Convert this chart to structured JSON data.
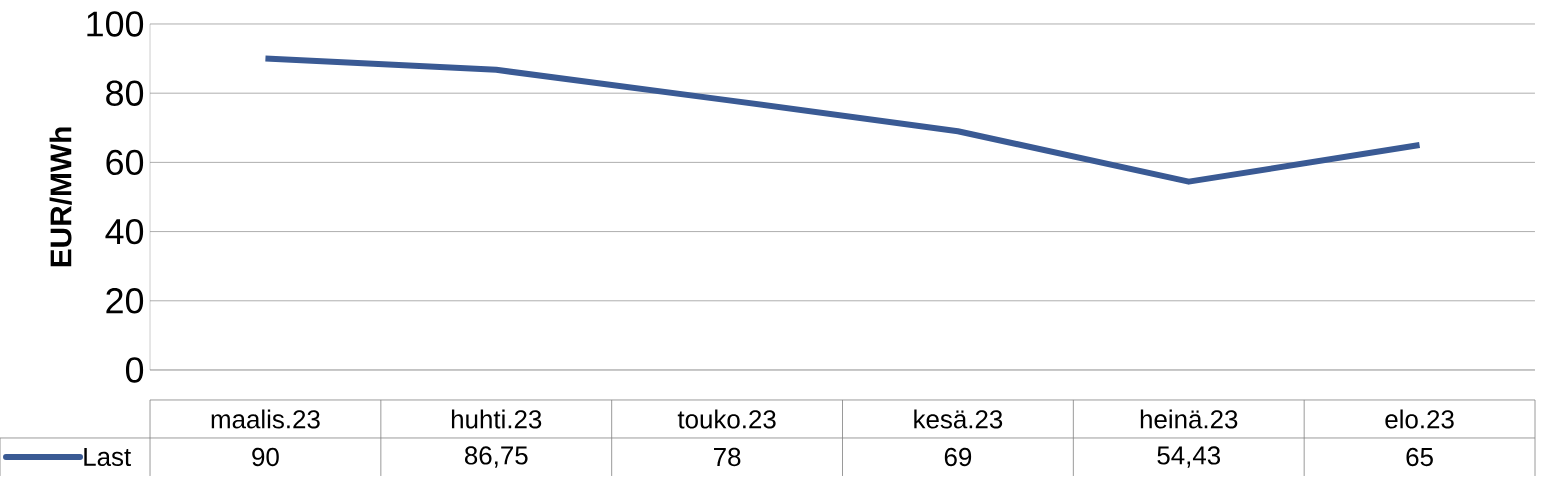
{
  "chart_data": {
    "type": "line",
    "ylabel": "EUR/MWh",
    "categories": [
      "maalis.23",
      "huhti.23",
      "touko.23",
      "kesä.23",
      "heinä.23",
      "elo.23"
    ],
    "series": [
      {
        "name": "Last",
        "color": "#3a5a94",
        "values": [
          90,
          86.75,
          78,
          69,
          54.43,
          65
        ],
        "value_labels": [
          "90",
          "86,75",
          "78",
          "69",
          "54,43",
          "65"
        ]
      }
    ],
    "ylim": [
      0,
      100
    ],
    "yticks": [
      0,
      20,
      40,
      60,
      80,
      100
    ],
    "grid": "y",
    "legend": "bottom"
  }
}
